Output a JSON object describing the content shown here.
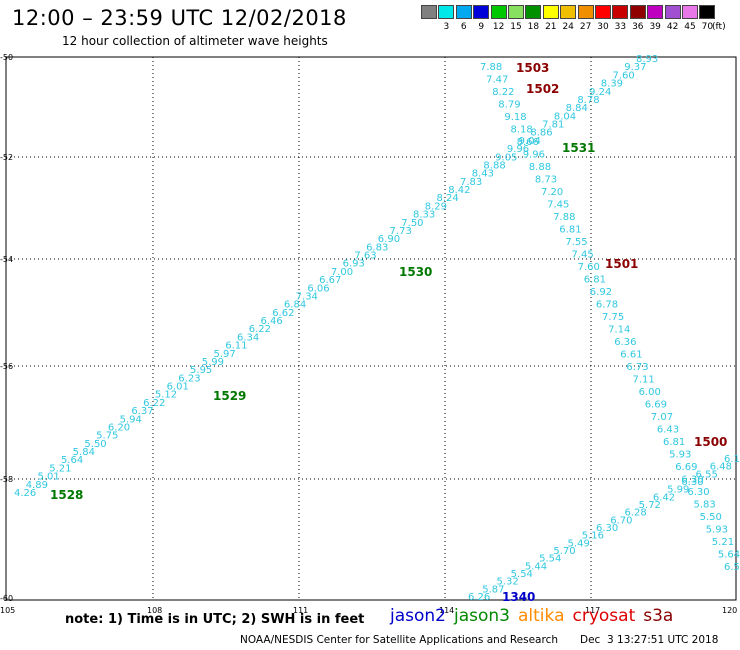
{
  "header": {
    "title": "12:00 – 23:59 UTC 12/02/2018",
    "subtitle": "12 hour collection of altimeter wave heights"
  },
  "color_scale": {
    "unit_label": "(ft)",
    "bins": [
      {
        "label": "",
        "color": "#808080"
      },
      {
        "label": "3",
        "color": "#00e8e8"
      },
      {
        "label": "6",
        "color": "#00a8f0"
      },
      {
        "label": "9",
        "color": "#0000d8"
      },
      {
        "label": "12",
        "color": "#00c800"
      },
      {
        "label": "15",
        "color": "#88e060"
      },
      {
        "label": "18",
        "color": "#009000"
      },
      {
        "label": "21",
        "color": "#ffff00"
      },
      {
        "label": "24",
        "color": "#f0c000"
      },
      {
        "label": "27",
        "color": "#f09000"
      },
      {
        "label": "30",
        "color": "#ff0000"
      },
      {
        "label": "33",
        "color": "#c80000"
      },
      {
        "label": "36",
        "color": "#900000"
      },
      {
        "label": "39",
        "color": "#c000c0"
      },
      {
        "label": "42",
        "color": "#a050d0"
      },
      {
        "label": "45",
        "color": "#e878e8"
      },
      {
        "label": "70",
        "color": "#000000"
      }
    ]
  },
  "map": {
    "lat_ticks": [
      "-50",
      "-52",
      "-54",
      "-56",
      "-58",
      "-60"
    ],
    "lon_ticks": [
      "105",
      "108",
      "111",
      "114",
      "117",
      "120"
    ]
  },
  "passes": [
    {
      "label": "1503",
      "color": "#8b0000"
    },
    {
      "label": "1502",
      "color": "#8b0000"
    },
    {
      "label": "1531",
      "color": "#007800"
    },
    {
      "label": "1501",
      "color": "#8b0000"
    },
    {
      "label": "1530",
      "color": "#007800"
    },
    {
      "label": "1529",
      "color": "#007800"
    },
    {
      "label": "1500",
      "color": "#8b0000"
    },
    {
      "label": "1528",
      "color": "#007800"
    },
    {
      "label": "1340",
      "color": "#0000c8"
    }
  ],
  "track_values": {
    "jason3_track": [
      "4.26",
      "4.89",
      "5.01",
      "5.21",
      "5.64",
      "5.84",
      "5.50",
      "5.75",
      "6.20",
      "5.94",
      "6.37",
      "6.22",
      "5.12",
      "6.01",
      "6.23",
      "5.95",
      "5.99",
      "5.97",
      "6.11",
      "6.34",
      "6.22",
      "6.46",
      "6.62",
      "6.84",
      "7.34",
      "6.06",
      "6.67",
      "7.00",
      "6.93",
      "7.63",
      "6.83",
      "6.90",
      "7.73",
      "7.50",
      "8.33",
      "8.29",
      "8.24",
      "8.42",
      "7.83",
      "8.43",
      "8.88",
      "9.05",
      "9.96",
      "9.04",
      "8.86",
      "7.81",
      "8.04",
      "8.84",
      "8.78",
      "9.24",
      "8.39",
      "7.60",
      "9.37",
      "8.93"
    ],
    "cryosat_track": [
      "7.88",
      "7.47",
      "8.22",
      "8.79",
      "9.18",
      "8.18",
      "8.66",
      "9.96",
      "8.88",
      "8.73",
      "7.20",
      "7.45",
      "7.88",
      "6.81",
      "7.55",
      "7.45",
      "7.60",
      "6.81",
      "6.92",
      "6.78",
      "7.75",
      "7.14",
      "6.36",
      "6.61",
      "6.73",
      "7.11",
      "6.00",
      "6.69",
      "7.07",
      "6.43",
      "6.81",
      "5.93",
      "6.69",
      "6.30",
      "6.30",
      "5.83",
      "5.50",
      "5.93",
      "5.21",
      "5.64",
      "6.5"
    ],
    "jason2_track": [
      "6.26",
      "5.87",
      "5.32",
      "5.54",
      "5.44",
      "5.54",
      "5.70",
      "5.49",
      "5.16",
      "6.30",
      "6.70",
      "6.28",
      "5.72",
      "6.42",
      "5.99",
      "6.30",
      "6.55",
      "6.48",
      "6.1"
    ]
  },
  "footer": {
    "note": "note: 1) Time is in UTC; 2) SWH is in feet",
    "satellites": [
      {
        "name": "jason2",
        "color": "#0000cc"
      },
      {
        "name": "jason3",
        "color": "#008800"
      },
      {
        "name": "altika",
        "color": "#ff8c00"
      },
      {
        "name": "cryosat",
        "color": "#dd0000"
      },
      {
        "name": "s3a",
        "color": "#8b0000"
      }
    ],
    "credit": "NOAA/NESDIS Center for Satellite Applications and Research",
    "timestamp": "Dec  3 13:27:51 UTC 2018"
  }
}
